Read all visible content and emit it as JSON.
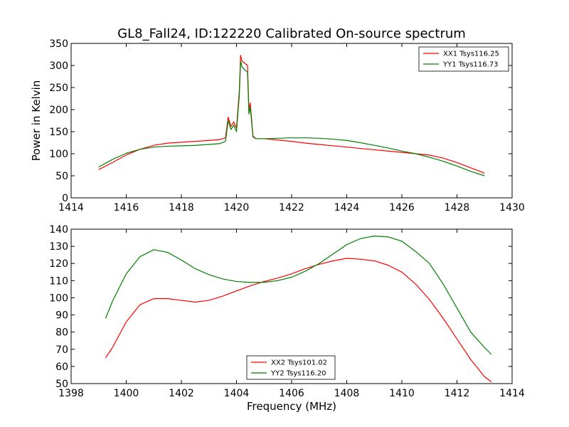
{
  "chart_data": [
    {
      "type": "line",
      "title": "GL8_Fall24, ID:122220 Calibrated On-source spectrum",
      "xlabel": "",
      "ylabel": "Power in Kelvin",
      "xlim": [
        1414,
        1430
      ],
      "ylim": [
        0,
        350
      ],
      "xticks": [
        1414,
        1416,
        1418,
        1420,
        1422,
        1424,
        1426,
        1428,
        1430
      ],
      "yticks": [
        0,
        50,
        100,
        150,
        200,
        250,
        300,
        350
      ],
      "grid": false,
      "legend": "top-right",
      "series": [
        {
          "name": "XX1 Tsys116.25",
          "color": "#ff0000",
          "x": [
            1415.0,
            1415.5,
            1416.0,
            1416.5,
            1417.0,
            1417.5,
            1418.0,
            1418.5,
            1419.0,
            1419.4,
            1419.6,
            1419.7,
            1419.8,
            1419.9,
            1420.0,
            1420.1,
            1420.15,
            1420.2,
            1420.3,
            1420.4,
            1420.45,
            1420.5,
            1420.6,
            1420.7,
            1421.0,
            1421.5,
            1422.0,
            1422.5,
            1423.0,
            1423.5,
            1424.0,
            1424.5,
            1425.0,
            1425.5,
            1426.0,
            1426.5,
            1427.0,
            1427.5,
            1428.0,
            1428.5,
            1429.0
          ],
          "y": [
            64,
            80,
            97,
            110,
            119,
            124,
            126,
            128,
            130,
            132,
            136,
            183,
            162,
            172,
            158,
            240,
            323,
            310,
            305,
            300,
            200,
            215,
            140,
            134,
            134,
            131,
            128,
            124,
            121,
            118,
            115,
            112,
            109,
            106,
            103,
            100,
            97,
            90,
            80,
            68,
            56
          ]
        },
        {
          "name": "YY1 Tsys116.73",
          "color": "#008000",
          "x": [
            1415.0,
            1415.5,
            1416.0,
            1416.5,
            1417.0,
            1417.5,
            1418.0,
            1418.5,
            1419.0,
            1419.4,
            1419.6,
            1419.7,
            1419.8,
            1419.9,
            1420.0,
            1420.1,
            1420.15,
            1420.2,
            1420.3,
            1420.4,
            1420.45,
            1420.5,
            1420.6,
            1420.7,
            1421.0,
            1421.5,
            1422.0,
            1422.5,
            1423.0,
            1423.5,
            1424.0,
            1424.5,
            1425.0,
            1425.5,
            1426.0,
            1426.5,
            1427.0,
            1427.5,
            1428.0,
            1428.5,
            1429.0
          ],
          "y": [
            70,
            87,
            101,
            110,
            115,
            117,
            118,
            119,
            121,
            123,
            128,
            175,
            155,
            165,
            150,
            230,
            310,
            297,
            290,
            285,
            190,
            205,
            138,
            134,
            134,
            135,
            136,
            136,
            135,
            133,
            130,
            125,
            119,
            113,
            106,
            100,
            92,
            83,
            72,
            60,
            50
          ]
        }
      ]
    },
    {
      "type": "line",
      "title": "",
      "xlabel": "Frequency (MHz)",
      "ylabel": "",
      "xlim": [
        1398,
        1414
      ],
      "ylim": [
        50,
        140
      ],
      "xticks": [
        1398,
        1400,
        1402,
        1404,
        1406,
        1408,
        1410,
        1412,
        1414
      ],
      "yticks": [
        50,
        60,
        70,
        80,
        90,
        100,
        110,
        120,
        130,
        140
      ],
      "grid": false,
      "legend": "bottom-center",
      "series": [
        {
          "name": "XX2 Tsys101.02",
          "color": "#ff0000",
          "x": [
            1399.25,
            1399.5,
            1400.0,
            1400.5,
            1401.0,
            1401.5,
            1402.0,
            1402.5,
            1403.0,
            1403.5,
            1404.0,
            1404.5,
            1405.0,
            1405.5,
            1406.0,
            1406.5,
            1407.0,
            1407.5,
            1408.0,
            1408.5,
            1409.0,
            1409.5,
            1410.0,
            1410.5,
            1411.0,
            1411.5,
            1412.0,
            1412.5,
            1413.0,
            1413.25
          ],
          "y": [
            65,
            71,
            86,
            96,
            99.5,
            99.5,
            98.5,
            97.5,
            98.5,
            101,
            104,
            107,
            109.5,
            111.5,
            114,
            117,
            119.5,
            121.5,
            123,
            122.5,
            121.5,
            119,
            115,
            108,
            99,
            88,
            76,
            64,
            54,
            51
          ]
        },
        {
          "name": "YY2 Tsys116.20",
          "color": "#008000",
          "x": [
            1399.25,
            1399.5,
            1400.0,
            1400.5,
            1401.0,
            1401.5,
            1402.0,
            1402.5,
            1403.0,
            1403.5,
            1404.0,
            1404.5,
            1405.0,
            1405.5,
            1406.0,
            1406.5,
            1407.0,
            1407.5,
            1408.0,
            1408.5,
            1409.0,
            1409.5,
            1410.0,
            1410.5,
            1411.0,
            1411.5,
            1412.0,
            1412.5,
            1413.0,
            1413.25
          ],
          "y": [
            88,
            98,
            114,
            124,
            128,
            126.5,
            122,
            117,
            113.5,
            111,
            109.5,
            109,
            109,
            110,
            112,
            115.5,
            120,
            125.5,
            131,
            134.5,
            136,
            135.5,
            133,
            127,
            120,
            108,
            94,
            80,
            71,
            67
          ]
        }
      ]
    }
  ]
}
